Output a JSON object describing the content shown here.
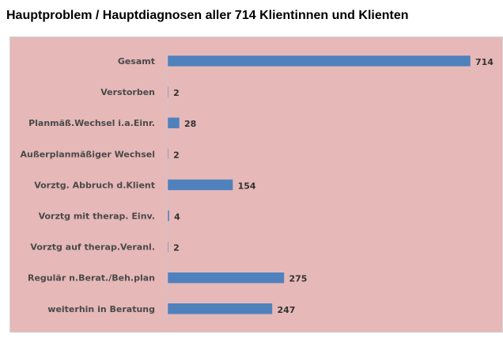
{
  "chart_data": {
    "type": "bar",
    "orientation": "horizontal",
    "title": "Hauptproblem / Hauptdiagnosen aller 714 Klientinnen und Klienten",
    "categories": [
      "Gesamt",
      "Verstorben",
      "Planmäß.Wechsel i.a.Einr.",
      "Außerplanmäßiger Wechsel",
      "Vorztg. Abbruch d.Klient",
      "Vorztg mit therap. Einv.",
      "Vorztg auf therap.Veranl.",
      "Regulär n.Berat./Beh.plan",
      "weiterhin in Beratung"
    ],
    "values": [
      714,
      2,
      28,
      2,
      154,
      4,
      2,
      275,
      247
    ],
    "xlim": [
      0,
      800
    ],
    "grid": false,
    "legend": "none",
    "colors": {
      "bar": "#4f81bd",
      "background": "#e6b8b8"
    }
  }
}
